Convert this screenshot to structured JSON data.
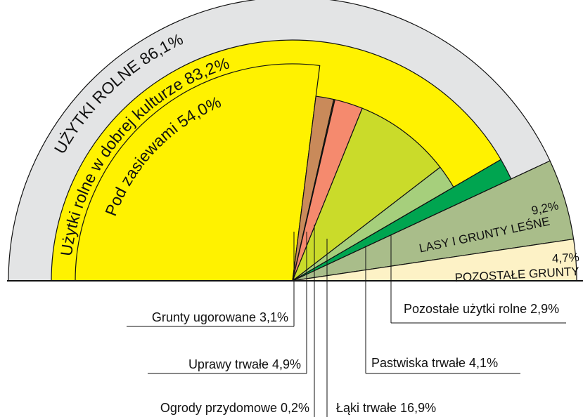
{
  "chart_data": {
    "type": "pie",
    "outer": [
      {
        "name": "UŻYTKI ROLNE",
        "value": 86.1,
        "value_label": "86,1%",
        "color": "#e3e4e5"
      },
      {
        "name": "LASY I GRUNTY LEŚNE",
        "value": 9.2,
        "value_label": "9,2%",
        "color": "#a9bd8a"
      },
      {
        "name": "POZOSTAŁE GRUNTY",
        "value": 4.7,
        "value_label": "4,7%",
        "color": "#fdf2c6"
      }
    ],
    "middle": [
      {
        "name": "Użytki rolne w dobrej kulturze",
        "value": 83.2,
        "value_label": "83,2%",
        "color": "#fff200"
      },
      {
        "name": "Pozostałe użytki rolne",
        "value": 2.9,
        "value_label": "2,9%",
        "color": "#00a550"
      }
    ],
    "inner": [
      {
        "name": "Pod zasiewami",
        "value": 54.0,
        "value_label": "54,0%",
        "color": "#fff200"
      },
      {
        "name": "Grunty ugorowane",
        "value": 3.1,
        "value_label": "3,1%",
        "color": "#c98a5a"
      },
      {
        "name": "Ogrody przydomowe",
        "value": 0.2,
        "value_label": "0,2%",
        "color": "#5a3a1a"
      },
      {
        "name": "Uprawy trwałe",
        "value": 4.9,
        "value_label": "4,9%",
        "color": "#f58a6e"
      },
      {
        "name": "Łąki trwałe",
        "value": 16.9,
        "value_label": "16,9%",
        "color": "#cadb2a"
      },
      {
        "name": "Pastwiska trwałe",
        "value": 4.1,
        "value_label": "4,1%",
        "color": "#a6cf7c"
      }
    ]
  }
}
